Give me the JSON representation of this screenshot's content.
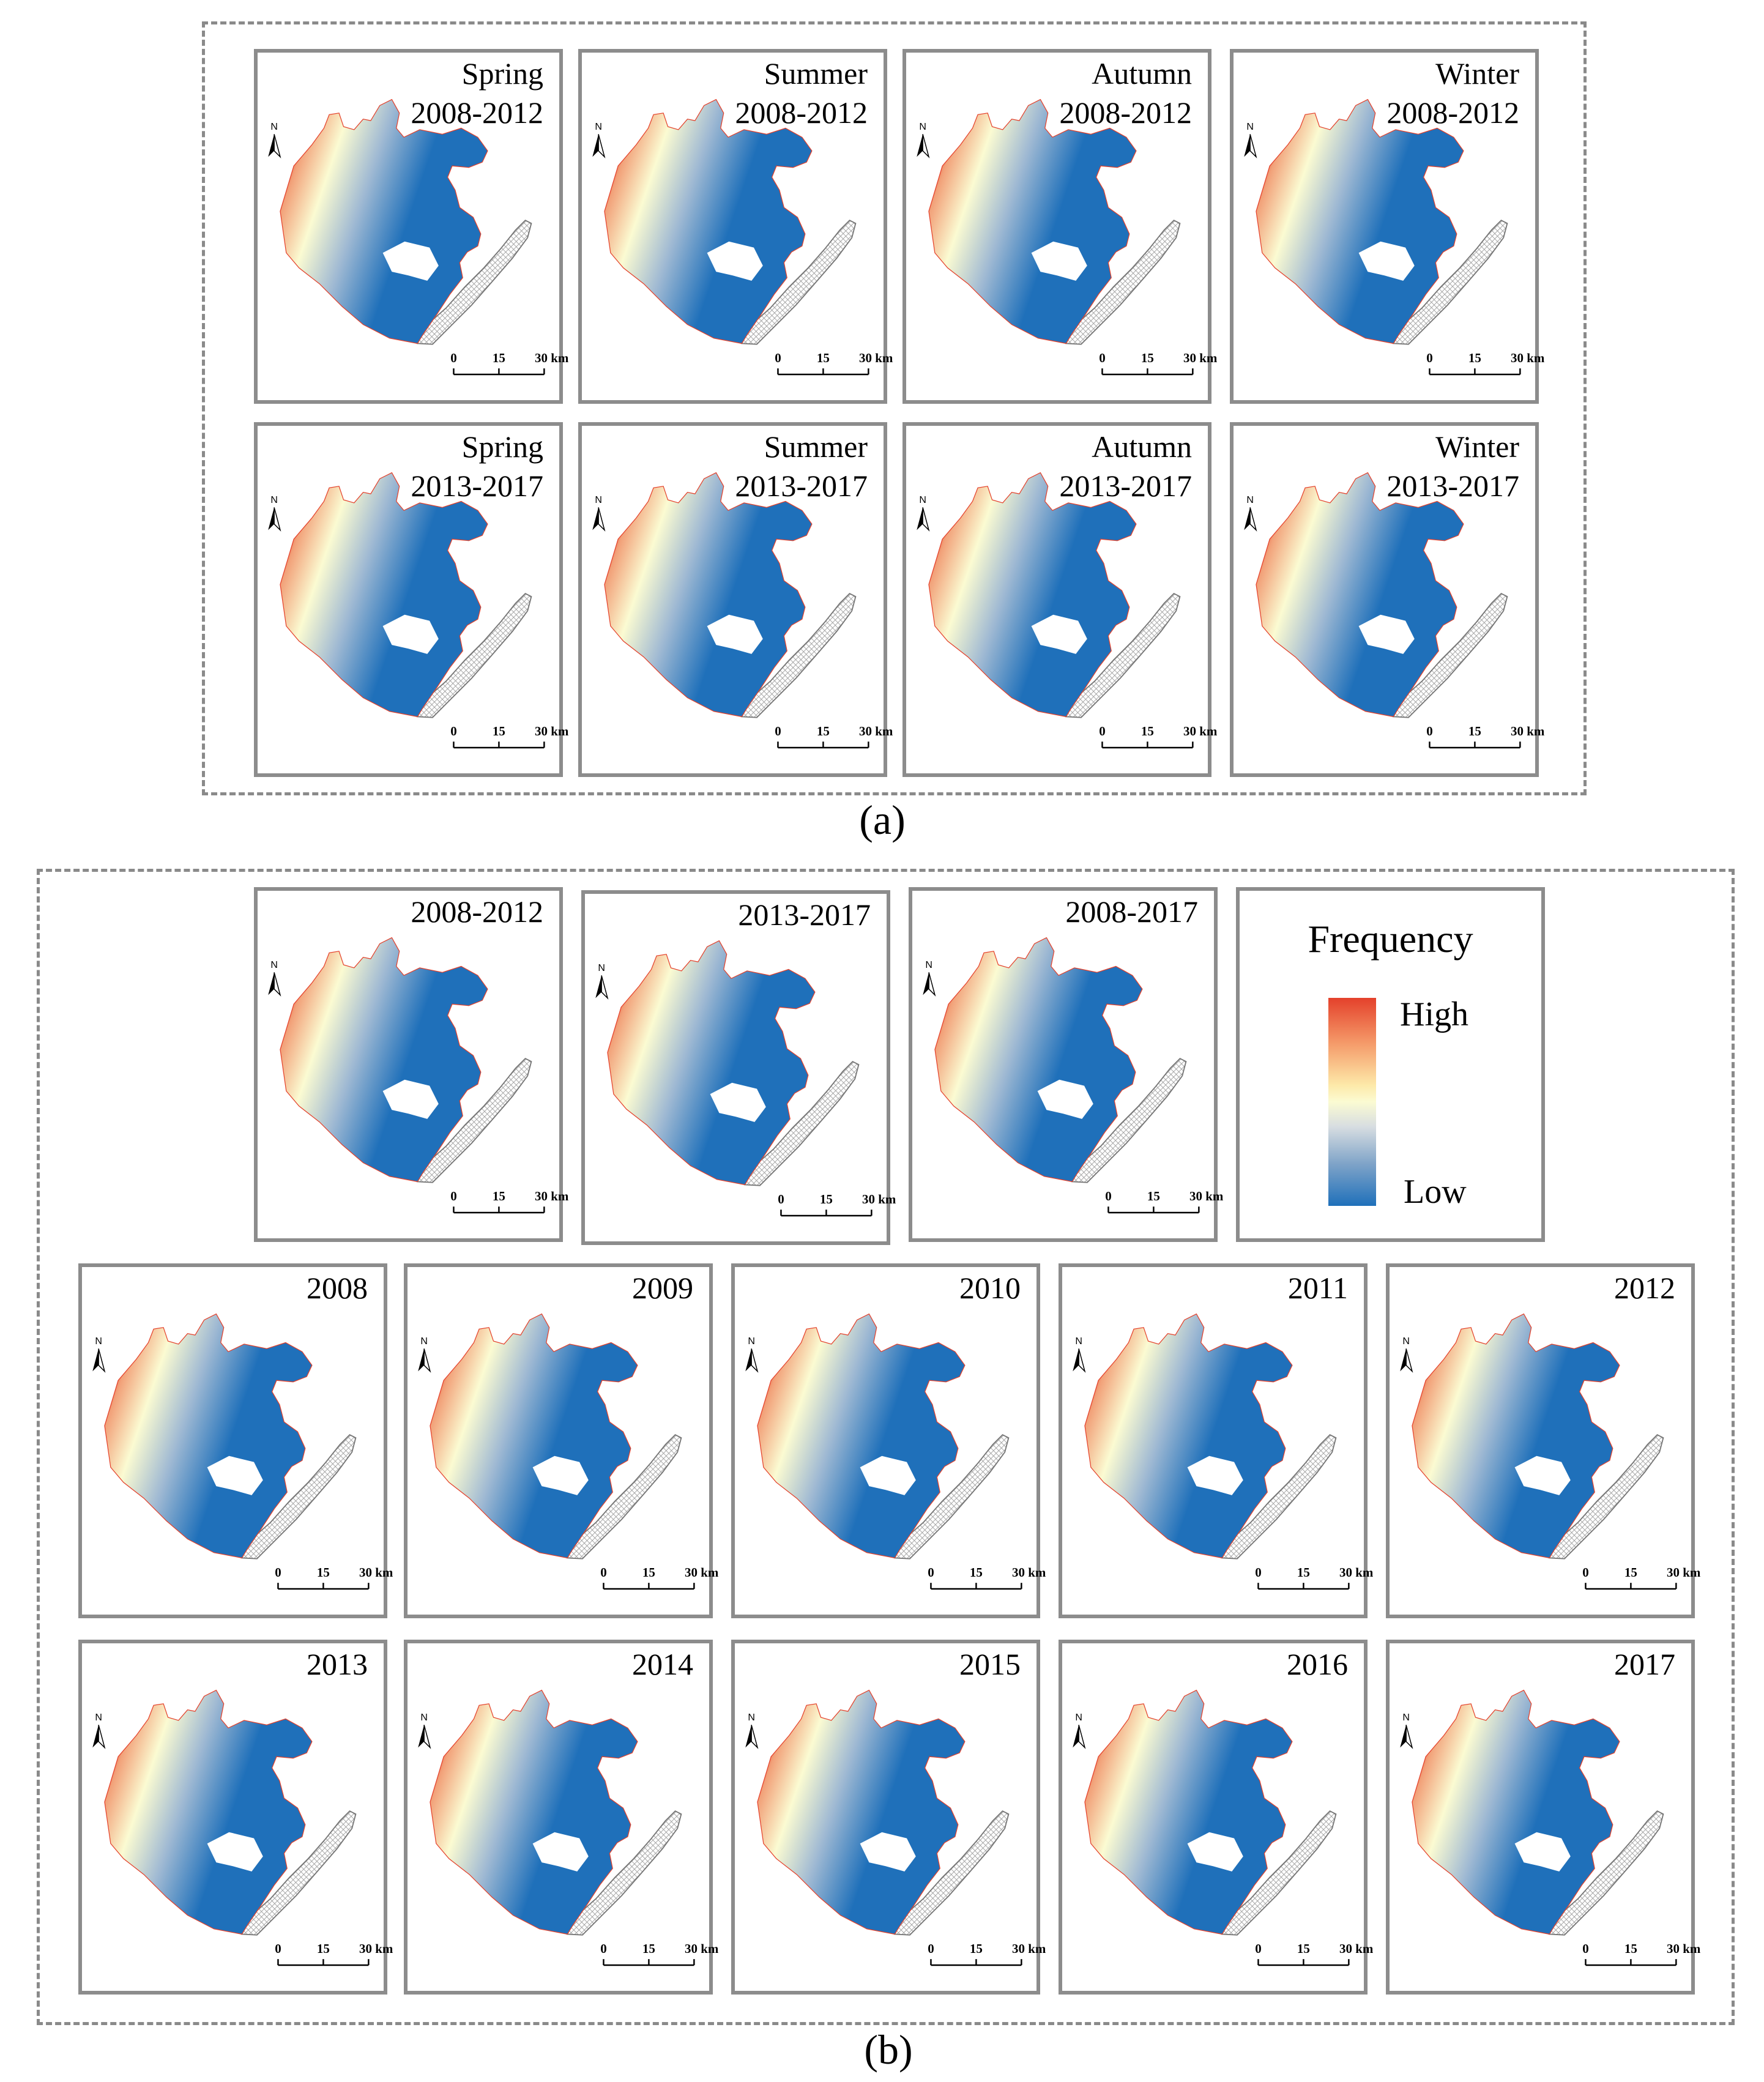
{
  "figure_labels": {
    "a": "(a)",
    "b": "(b)"
  },
  "colors": {
    "high": "#e4412b",
    "mid": "#fbfbd2",
    "low": "#1f70ba",
    "frame": "#8c8c8c"
  },
  "map_common": {
    "north_label": "N",
    "scale_ticks": [
      "0",
      "15",
      "30 km"
    ]
  },
  "seasonal_panels": [
    {
      "title": "Spring\n2008-2012"
    },
    {
      "title": "Summer\n2008-2012"
    },
    {
      "title": "Autumn\n2008-2012"
    },
    {
      "title": "Winter\n2008-2012"
    },
    {
      "title": "Spring\n2013-2017"
    },
    {
      "title": "Summer\n2013-2017"
    },
    {
      "title": "Autumn\n2013-2017"
    },
    {
      "title": "Winter\n2013-2017"
    }
  ],
  "period_panels": [
    {
      "title": "2008-2012"
    },
    {
      "title": "2013-2017"
    },
    {
      "title": "2008-2017"
    }
  ],
  "legend": {
    "title": "Frequency",
    "high_label": "High",
    "low_label": "Low"
  },
  "annual_panels": [
    {
      "title": "2008"
    },
    {
      "title": "2009"
    },
    {
      "title": "2010"
    },
    {
      "title": "2011"
    },
    {
      "title": "2012"
    },
    {
      "title": "2013"
    },
    {
      "title": "2014"
    },
    {
      "title": "2015"
    },
    {
      "title": "2016"
    },
    {
      "title": "2017"
    }
  ]
}
